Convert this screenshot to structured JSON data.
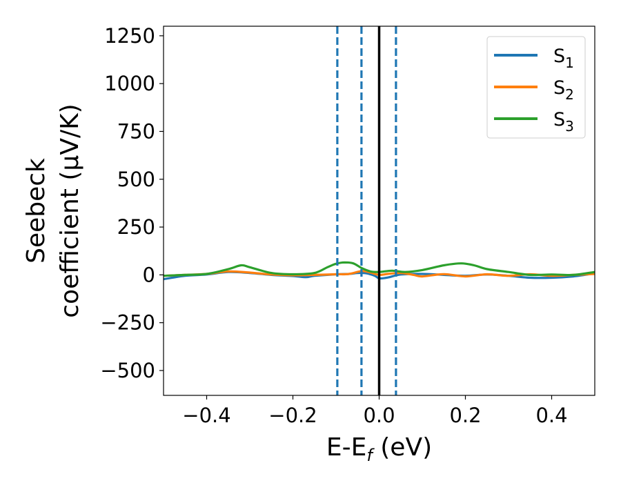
{
  "chart_data": {
    "type": "line",
    "title": "",
    "xlabel": {
      "main": "E-E",
      "sub": "f",
      "unit": " (eV)"
    },
    "ylabel": {
      "line1": "Seebeck",
      "line2": "coefficient  (μV/K)"
    },
    "xlim": [
      -0.5,
      0.5
    ],
    "ylim": [
      -630,
      1300
    ],
    "xticks": [
      -0.4,
      -0.2,
      0.0,
      0.2,
      0.4
    ],
    "xtick_labels": [
      "−0.4",
      "−0.2",
      "0.0",
      "0.2",
      "0.4"
    ],
    "yticks": [
      -500,
      -250,
      0,
      250,
      500,
      750,
      1000,
      1250
    ],
    "ytick_labels": [
      "−500",
      "−250",
      "0",
      "250",
      "500",
      "750",
      "1000",
      "1250"
    ],
    "grid": false,
    "legend": {
      "position": "top-right"
    },
    "vlines": [
      {
        "x": -0.097,
        "style": "dashed",
        "color": "#1f77b4"
      },
      {
        "x": -0.041,
        "style": "dashed",
        "color": "#1f77b4"
      },
      {
        "x": 0.0,
        "style": "solid",
        "color": "#000000"
      },
      {
        "x": 0.039,
        "style": "dashed",
        "color": "#1f77b4"
      }
    ],
    "series": [
      {
        "name": "S",
        "sub": "1",
        "color": "#1f77b4",
        "x": [
          -0.5,
          -0.45,
          -0.4,
          -0.35,
          -0.3,
          -0.25,
          -0.2,
          -0.17,
          -0.15,
          -0.1,
          -0.07,
          -0.05,
          -0.03,
          -0.01,
          0.0,
          0.02,
          0.05,
          0.1,
          0.15,
          0.2,
          0.25,
          0.3,
          0.35,
          0.4,
          0.45,
          0.5
        ],
        "y": [
          -22,
          -5,
          2,
          15,
          10,
          0,
          -6,
          -12,
          -5,
          3,
          5,
          10,
          8,
          -5,
          -18,
          -14,
          2,
          5,
          0,
          -5,
          2,
          -5,
          -15,
          -15,
          -8,
          8
        ]
      },
      {
        "name": "S",
        "sub": "2",
        "color": "#ff7f0e",
        "x": [
          -0.5,
          -0.45,
          -0.4,
          -0.35,
          -0.3,
          -0.25,
          -0.2,
          -0.15,
          -0.1,
          -0.07,
          -0.04,
          -0.02,
          0.0,
          0.02,
          0.05,
          0.08,
          0.1,
          0.15,
          0.2,
          0.25,
          0.3,
          0.35,
          0.4,
          0.45,
          0.5
        ],
        "y": [
          -5,
          0,
          5,
          18,
          12,
          2,
          -2,
          0,
          3,
          5,
          20,
          12,
          0,
          5,
          10,
          0,
          -8,
          4,
          -8,
          3,
          -5,
          3,
          -5,
          0,
          5
        ]
      },
      {
        "name": "S",
        "sub": "3",
        "color": "#2ca02c",
        "x": [
          -0.5,
          -0.45,
          -0.4,
          -0.35,
          -0.32,
          -0.3,
          -0.25,
          -0.2,
          -0.15,
          -0.12,
          -0.1,
          -0.08,
          -0.06,
          -0.04,
          -0.02,
          0.0,
          0.03,
          0.06,
          0.1,
          0.15,
          0.19,
          0.22,
          0.25,
          0.3,
          0.35,
          0.4,
          0.45,
          0.5
        ],
        "y": [
          -5,
          0,
          5,
          30,
          50,
          40,
          10,
          3,
          10,
          40,
          58,
          65,
          60,
          35,
          18,
          15,
          22,
          15,
          25,
          50,
          60,
          50,
          30,
          15,
          0,
          2,
          0,
          15
        ]
      }
    ]
  }
}
